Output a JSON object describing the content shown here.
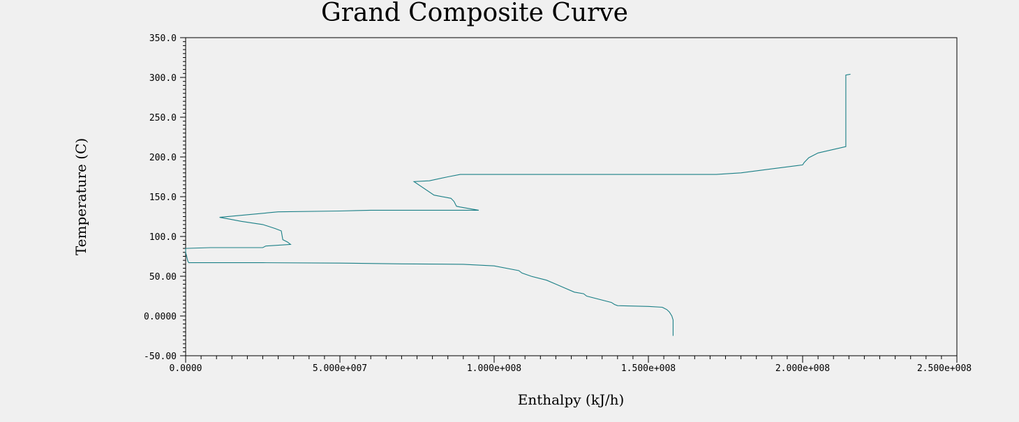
{
  "chart_data": {
    "type": "line",
    "title": "Grand Composite Curve",
    "xlabel": "Enthalpy (kJ/h)",
    "ylabel": "Temperature (C)",
    "xlim": [
      0,
      250000000
    ],
    "ylim": [
      -50,
      350
    ],
    "x_ticks": [
      0,
      50000000,
      100000000,
      150000000,
      200000000,
      250000000
    ],
    "x_tick_labels": [
      "0.0000",
      "5.000e+007",
      "1.000e+008",
      "1.500e+008",
      "2.000e+008",
      "2.500e+008"
    ],
    "y_ticks": [
      -50,
      0,
      50,
      100,
      150,
      200,
      250,
      300,
      350
    ],
    "y_tick_labels": [
      "-50.00",
      "0.0000",
      "50.00",
      "100.0",
      "150.0",
      "200.0",
      "250.0",
      "300.0",
      "350.0"
    ],
    "grid": false,
    "line_color": "#1a7f86",
    "series": [
      {
        "x": [
          158000000,
          158000000,
          157600000,
          156800000,
          156000000,
          155000000,
          154500000,
          150000000,
          140000000,
          139000000,
          138000000,
          130000000,
          129000000,
          126000000,
          123000000,
          120000000,
          117000000,
          112000000,
          109000000,
          108000000,
          100000000,
          90000000,
          70000000,
          50000000,
          25000000,
          1000000,
          700000,
          0,
          0,
          8000000,
          25000000,
          26000000,
          34000000,
          33000000,
          31500000,
          31000000,
          29000000,
          25000000,
          18000000,
          14000000,
          11000000,
          30000000,
          50000000,
          60000000,
          80000000,
          95000000,
          89000000,
          87800000,
          87500000,
          87000000,
          86000000,
          80500000,
          74000000,
          79000000,
          85000000,
          89000000,
          100000000,
          172000000,
          180000000,
          190000000,
          200000000,
          200500000,
          202000000,
          205000000,
          214000000,
          214000000,
          214000000,
          215500000
        ],
        "y": [
          -25,
          -5,
          0,
          5,
          8,
          10,
          11,
          12,
          13,
          14.5,
          17,
          25,
          28,
          30,
          35,
          40,
          45,
          50,
          54,
          57,
          63,
          65,
          65.5,
          66.5,
          67,
          67,
          69,
          80,
          85,
          86,
          86,
          88,
          90,
          93,
          96,
          107,
          110,
          115,
          119,
          122,
          124,
          131,
          132,
          133,
          133,
          133,
          137,
          138,
          140,
          144,
          148,
          152,
          169,
          170,
          175,
          178,
          178,
          178,
          180,
          185,
          190,
          193,
          199,
          205,
          213,
          290,
          303,
          304
        ]
      }
    ]
  }
}
